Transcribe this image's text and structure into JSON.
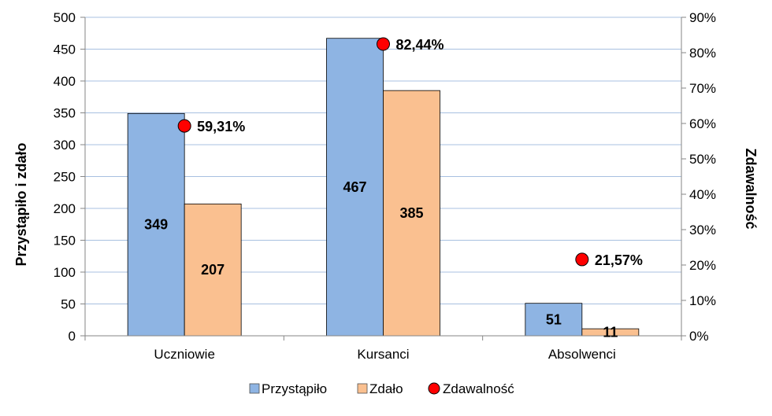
{
  "chart_data": {
    "type": "bar",
    "categories": [
      "Uczniowie",
      "Kursanci",
      "Absolwenci"
    ],
    "series": [
      {
        "name": "Przystąpiło",
        "values": [
          349,
          467,
          51
        ],
        "color": "#8EB4E3",
        "labels": [
          "349",
          "467",
          "51"
        ]
      },
      {
        "name": "Zdało",
        "values": [
          207,
          385,
          11
        ],
        "color": "#FAC090",
        "labels": [
          "207",
          "385",
          "11"
        ]
      }
    ],
    "secondary_series": {
      "name": "Zdawalność",
      "type": "scatter",
      "values": [
        59.31,
        82.44,
        21.57
      ],
      "labels": [
        "59,31%",
        "82,44%",
        "21,57%"
      ],
      "color": "#FF0000"
    },
    "ylabel": "Przystąpiło i zdało",
    "y2label": "Zdawalność",
    "ylim": [
      0,
      500
    ],
    "y_ticks": [
      "0",
      "50",
      "100",
      "150",
      "200",
      "250",
      "300",
      "350",
      "400",
      "450",
      "500"
    ],
    "y2lim": [
      0,
      90
    ],
    "y2_ticks": [
      "0%",
      "10%",
      "20%",
      "30%",
      "40%",
      "50%",
      "60%",
      "70%",
      "80%",
      "90%"
    ],
    "grid": true,
    "grid_color": "#A8C0E0",
    "legend_position": "bottom"
  }
}
